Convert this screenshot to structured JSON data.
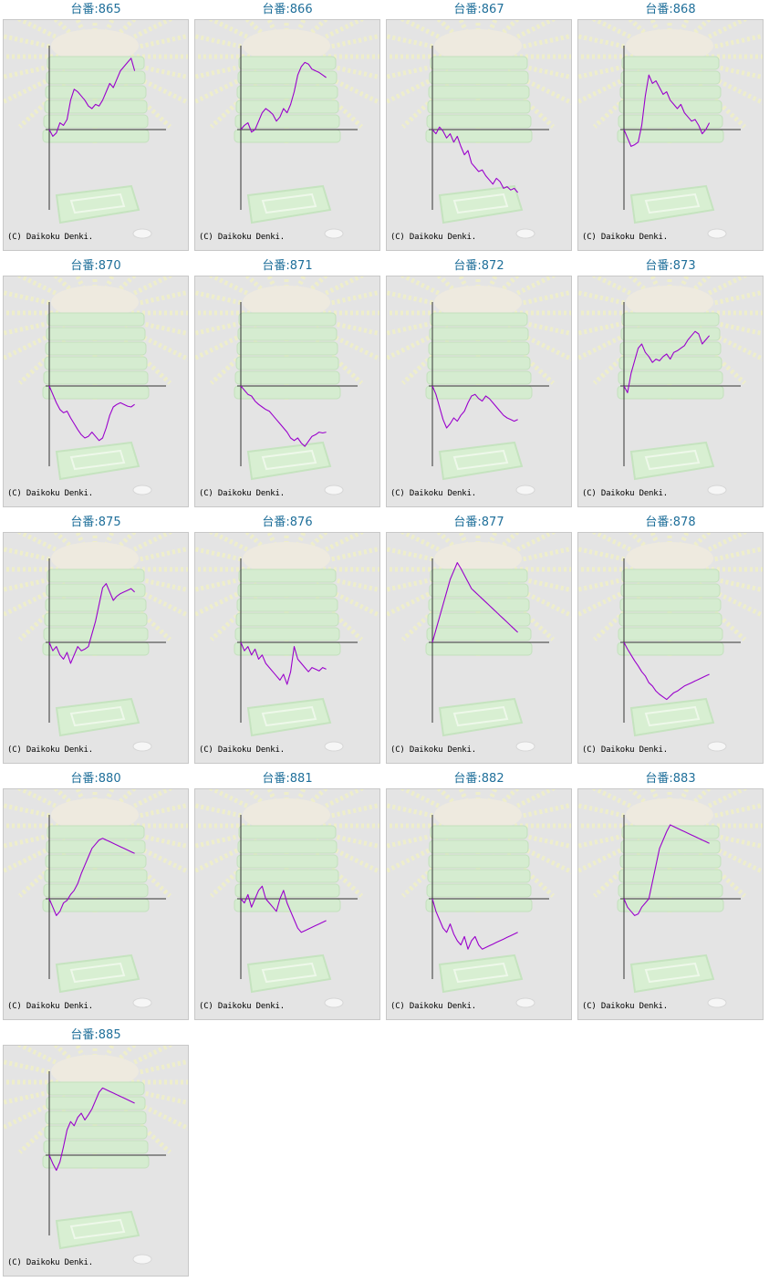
{
  "machines": [
    {
      "title": "台番:865",
      "copyright": "(C) Daikoku Denki."
    },
    {
      "title": "台番:866",
      "copyright": "(C) Daikoku Denki."
    },
    {
      "title": "台番:867",
      "copyright": "(C) Daikoku Denki."
    },
    {
      "title": "台番:868",
      "copyright": "(C) Daikoku Denki."
    },
    {
      "title": "台番:870",
      "copyright": "(C) Daikoku Denki."
    },
    {
      "title": "台番:871",
      "copyright": "(C) Daikoku Denki."
    },
    {
      "title": "台番:872",
      "copyright": "(C) Daikoku Denki."
    },
    {
      "title": "台番:873",
      "copyright": "(C) Daikoku Denki."
    },
    {
      "title": "台番:875",
      "copyright": "(C) Daikoku Denki."
    },
    {
      "title": "台番:876",
      "copyright": "(C) Daikoku Denki."
    },
    {
      "title": "台番:877",
      "copyright": "(C) Daikoku Denki."
    },
    {
      "title": "台番:878",
      "copyright": "(C) Daikoku Denki."
    },
    {
      "title": "台番:880",
      "copyright": "(C) Daikoku Denki."
    },
    {
      "title": "台番:881",
      "copyright": "(C) Daikoku Denki."
    },
    {
      "title": "台番:882",
      "copyright": "(C) Daikoku Denki."
    },
    {
      "title": "台番:883",
      "copyright": "(C) Daikoku Denki."
    },
    {
      "title": "台番:885",
      "copyright": "(C) Daikoku Denki."
    }
  ],
  "colors": {
    "title": "#1f6f9a",
    "line": "#9a00cc",
    "axis": "#333333",
    "panel_bg": "#e4e4e4",
    "panel_border": "#c8c8c8"
  },
  "chart_data": [
    {
      "type": "line",
      "title": "台番:865",
      "ylim": [
        -100,
        100
      ],
      "x": [
        0,
        8,
        16,
        24,
        32,
        40,
        48,
        56,
        64,
        72,
        80,
        88,
        96,
        104,
        112,
        120,
        128,
        136,
        144,
        152,
        160,
        168,
        176,
        184,
        192
      ],
      "values": [
        0,
        -8,
        -4,
        8,
        5,
        12,
        35,
        48,
        45,
        40,
        35,
        28,
        25,
        30,
        28,
        35,
        45,
        55,
        50,
        60,
        70,
        75,
        80,
        85,
        70
      ]
    },
    {
      "type": "line",
      "title": "台番:866",
      "ylim": [
        -100,
        100
      ],
      "x": [
        0,
        8,
        16,
        24,
        32,
        40,
        48,
        56,
        64,
        72,
        80,
        88,
        96,
        104,
        112,
        120,
        128,
        136,
        144,
        152,
        160,
        168,
        176,
        184,
        192
      ],
      "values": [
        0,
        5,
        8,
        -3,
        0,
        10,
        20,
        25,
        22,
        18,
        10,
        15,
        25,
        20,
        30,
        45,
        65,
        75,
        80,
        78,
        72,
        70,
        68,
        65,
        62
      ]
    },
    {
      "type": "line",
      "title": "台番:867",
      "ylim": [
        -100,
        100
      ],
      "x": [
        0,
        8,
        16,
        24,
        32,
        40,
        48,
        56,
        64,
        72,
        80,
        88,
        96,
        104,
        112,
        120,
        128,
        136,
        144,
        152,
        160,
        168,
        176,
        184,
        192
      ],
      "values": [
        0,
        -5,
        3,
        -2,
        -10,
        -5,
        -15,
        -8,
        -20,
        -30,
        -25,
        -40,
        -45,
        -50,
        -48,
        -55,
        -60,
        -65,
        -58,
        -62,
        -70,
        -68,
        -72,
        -70,
        -75
      ]
    },
    {
      "type": "line",
      "title": "台番:868",
      "ylim": [
        -100,
        100
      ],
      "x": [
        0,
        8,
        16,
        24,
        32,
        40,
        48,
        56,
        64,
        72,
        80,
        88,
        96,
        104,
        112,
        120,
        128,
        136,
        144,
        152,
        160,
        168,
        176,
        184,
        192
      ],
      "values": [
        0,
        -10,
        -20,
        -18,
        -15,
        5,
        40,
        65,
        55,
        58,
        50,
        42,
        45,
        35,
        30,
        25,
        30,
        20,
        15,
        10,
        12,
        5,
        -5,
        0,
        8
      ]
    },
    {
      "type": "line",
      "title": "台番:870",
      "ylim": [
        -100,
        100
      ],
      "x": [
        0,
        8,
        16,
        24,
        32,
        40,
        48,
        56,
        64,
        72,
        80,
        88,
        96,
        104,
        112,
        120,
        128,
        136,
        144,
        152,
        160,
        168,
        176,
        184,
        192
      ],
      "values": [
        0,
        -10,
        -20,
        -28,
        -32,
        -30,
        -38,
        -45,
        -52,
        -58,
        -62,
        -60,
        -55,
        -60,
        -65,
        -62,
        -50,
        -35,
        -25,
        -22,
        -20,
        -22,
        -24,
        -25,
        -22
      ]
    },
    {
      "type": "line",
      "title": "台番:871",
      "ylim": [
        -100,
        100
      ],
      "x": [
        0,
        8,
        16,
        24,
        32,
        40,
        48,
        56,
        64,
        72,
        80,
        88,
        96,
        104,
        112,
        120,
        128,
        136,
        144,
        152,
        160,
        168,
        176,
        184,
        192
      ],
      "values": [
        0,
        -5,
        -10,
        -12,
        -18,
        -22,
        -25,
        -28,
        -30,
        -35,
        -40,
        -45,
        -50,
        -55,
        -62,
        -65,
        -62,
        -68,
        -72,
        -66,
        -60,
        -58,
        -55,
        -56,
        -55
      ]
    },
    {
      "type": "line",
      "title": "台番:872",
      "ylim": [
        -100,
        100
      ],
      "x": [
        0,
        8,
        16,
        24,
        32,
        40,
        48,
        56,
        64,
        72,
        80,
        88,
        96,
        104,
        112,
        120,
        128,
        136,
        144,
        152,
        160,
        168,
        176,
        184,
        192
      ],
      "values": [
        0,
        -10,
        -25,
        -40,
        -50,
        -45,
        -38,
        -42,
        -35,
        -30,
        -20,
        -12,
        -10,
        -15,
        -18,
        -12,
        -15,
        -20,
        -25,
        -30,
        -35,
        -38,
        -40,
        -42,
        -40
      ]
    },
    {
      "type": "line",
      "title": "台番:873",
      "ylim": [
        -100,
        100
      ],
      "x": [
        0,
        8,
        16,
        24,
        32,
        40,
        48,
        56,
        64,
        72,
        80,
        88,
        96,
        104,
        112,
        120,
        128,
        136,
        144,
        152,
        160,
        168,
        176,
        184,
        192
      ],
      "values": [
        0,
        -8,
        15,
        30,
        45,
        50,
        40,
        35,
        28,
        32,
        30,
        35,
        38,
        32,
        40,
        42,
        45,
        48,
        55,
        60,
        65,
        62,
        50,
        55,
        60
      ]
    },
    {
      "type": "line",
      "title": "台番:875",
      "ylim": [
        -100,
        100
      ],
      "x": [
        0,
        8,
        16,
        24,
        32,
        40,
        48,
        56,
        64,
        72,
        80,
        88,
        96,
        104,
        112,
        120,
        128,
        136,
        144,
        152,
        160,
        168,
        176,
        184,
        192
      ],
      "values": [
        0,
        -10,
        -5,
        -15,
        -20,
        -12,
        -25,
        -15,
        -5,
        -10,
        -8,
        -5,
        10,
        25,
        45,
        65,
        70,
        60,
        50,
        55,
        58,
        60,
        62,
        64,
        60
      ]
    },
    {
      "type": "line",
      "title": "台番:876",
      "ylim": [
        -100,
        100
      ],
      "x": [
        0,
        8,
        16,
        24,
        32,
        40,
        48,
        56,
        64,
        72,
        80,
        88,
        96,
        104,
        112,
        120,
        128,
        136,
        144,
        152,
        160,
        168,
        176,
        184,
        192
      ],
      "values": [
        0,
        -10,
        -5,
        -15,
        -8,
        -20,
        -15,
        -25,
        -30,
        -35,
        -40,
        -45,
        -38,
        -50,
        -35,
        -5,
        -20,
        -25,
        -30,
        -35,
        -30,
        -32,
        -34,
        -30,
        -32
      ]
    },
    {
      "type": "line",
      "title": "台番:877",
      "ylim": [
        -100,
        100
      ],
      "x": [
        0,
        8,
        16,
        24,
        32,
        40,
        48,
        56,
        64,
        72,
        80,
        88,
        96,
        104,
        112,
        120,
        128,
        136,
        144,
        152,
        160,
        168,
        176,
        184,
        192
      ],
      "values": [
        0,
        15,
        30,
        45,
        60,
        75,
        85,
        95,
        88,
        80,
        72,
        64,
        60,
        56,
        52,
        48,
        44,
        40,
        36,
        32,
        28,
        24,
        20,
        16,
        12
      ]
    },
    {
      "type": "line",
      "title": "台番:878",
      "ylim": [
        -100,
        100
      ],
      "x": [
        0,
        8,
        16,
        24,
        32,
        40,
        48,
        56,
        64,
        72,
        80,
        88,
        96,
        104,
        112,
        120,
        128,
        136,
        144,
        152,
        160,
        168,
        176,
        184,
        192
      ],
      "values": [
        0,
        -8,
        -15,
        -22,
        -28,
        -35,
        -40,
        -48,
        -52,
        -58,
        -62,
        -65,
        -68,
        -64,
        -60,
        -58,
        -55,
        -52,
        -50,
        -48,
        -46,
        -44,
        -42,
        -40,
        -38
      ]
    },
    {
      "type": "line",
      "title": "台番:880",
      "ylim": [
        -100,
        100
      ],
      "x": [
        0,
        8,
        16,
        24,
        32,
        40,
        48,
        56,
        64,
        72,
        80,
        88,
        96,
        104,
        112,
        120,
        128,
        136,
        144,
        152,
        160,
        168,
        176,
        184,
        192
      ],
      "values": [
        0,
        -10,
        -20,
        -15,
        -5,
        -2,
        5,
        10,
        18,
        30,
        40,
        50,
        60,
        65,
        70,
        72,
        70,
        68,
        66,
        64,
        62,
        60,
        58,
        56,
        54
      ]
    },
    {
      "type": "line",
      "title": "台番:881",
      "ylim": [
        -100,
        100
      ],
      "x": [
        0,
        8,
        16,
        24,
        32,
        40,
        48,
        56,
        64,
        72,
        80,
        88,
        96,
        104,
        112,
        120,
        128,
        136,
        144,
        152,
        160,
        168,
        176,
        184,
        192
      ],
      "values": [
        0,
        -5,
        5,
        -10,
        0,
        10,
        15,
        0,
        -5,
        -10,
        -15,
        0,
        10,
        -5,
        -15,
        -25,
        -35,
        -40,
        -38,
        -36,
        -34,
        -32,
        -30,
        -28,
        -26
      ]
    },
    {
      "type": "line",
      "title": "台番:882",
      "ylim": [
        -100,
        100
      ],
      "x": [
        0,
        8,
        16,
        24,
        32,
        40,
        48,
        56,
        64,
        72,
        80,
        88,
        96,
        104,
        112,
        120,
        128,
        136,
        144,
        152,
        160,
        168,
        176,
        184,
        192
      ],
      "values": [
        0,
        -15,
        -25,
        -35,
        -40,
        -30,
        -42,
        -50,
        -55,
        -45,
        -60,
        -50,
        -45,
        -55,
        -60,
        -58,
        -56,
        -54,
        -52,
        -50,
        -48,
        -46,
        -44,
        -42,
        -40
      ]
    },
    {
      "type": "line",
      "title": "台番:883",
      "ylim": [
        -100,
        100
      ],
      "x": [
        0,
        8,
        16,
        24,
        32,
        40,
        48,
        56,
        64,
        72,
        80,
        88,
        96,
        104,
        112,
        120,
        128,
        136,
        144,
        152,
        160,
        168,
        176,
        184,
        192
      ],
      "values": [
        0,
        -10,
        -15,
        -20,
        -18,
        -10,
        -5,
        0,
        20,
        40,
        60,
        70,
        80,
        88,
        86,
        84,
        82,
        80,
        78,
        76,
        74,
        72,
        70,
        68,
        66
      ]
    },
    {
      "type": "line",
      "title": "台番:885",
      "ylim": [
        -100,
        100
      ],
      "x": [
        0,
        8,
        16,
        24,
        32,
        40,
        48,
        56,
        64,
        72,
        80,
        88,
        96,
        104,
        112,
        120,
        128,
        136,
        144,
        152,
        160,
        168,
        176,
        184,
        192
      ],
      "values": [
        0,
        -10,
        -18,
        -8,
        10,
        30,
        40,
        35,
        45,
        50,
        42,
        48,
        55,
        65,
        75,
        80,
        78,
        76,
        74,
        72,
        70,
        68,
        66,
        64,
        62
      ]
    }
  ]
}
